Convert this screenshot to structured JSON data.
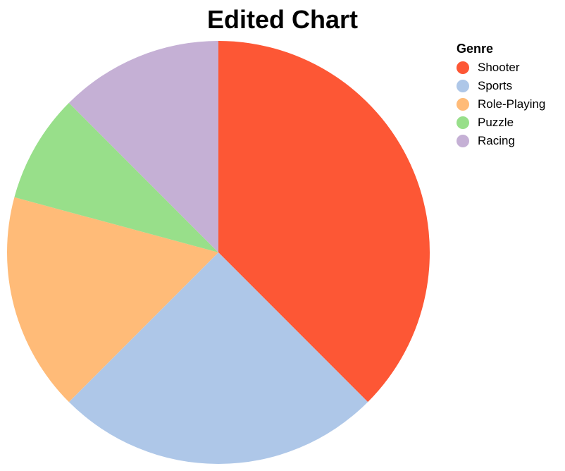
{
  "chart_data": {
    "type": "pie",
    "title": "Edited Chart",
    "legend_title": "Genre",
    "legend_placement": "top-right",
    "categories": [
      "Shooter",
      "Sports",
      "Role-Playing",
      "Puzzle",
      "Racing"
    ],
    "values": [
      37.5,
      25,
      16.7,
      8.3,
      12.5
    ],
    "colors": [
      "#fd5735",
      "#aec7e8",
      "#ffbb78",
      "#98df8a",
      "#c5b0d5"
    ],
    "start_angle_deg": 0,
    "direction": "clockwise"
  }
}
